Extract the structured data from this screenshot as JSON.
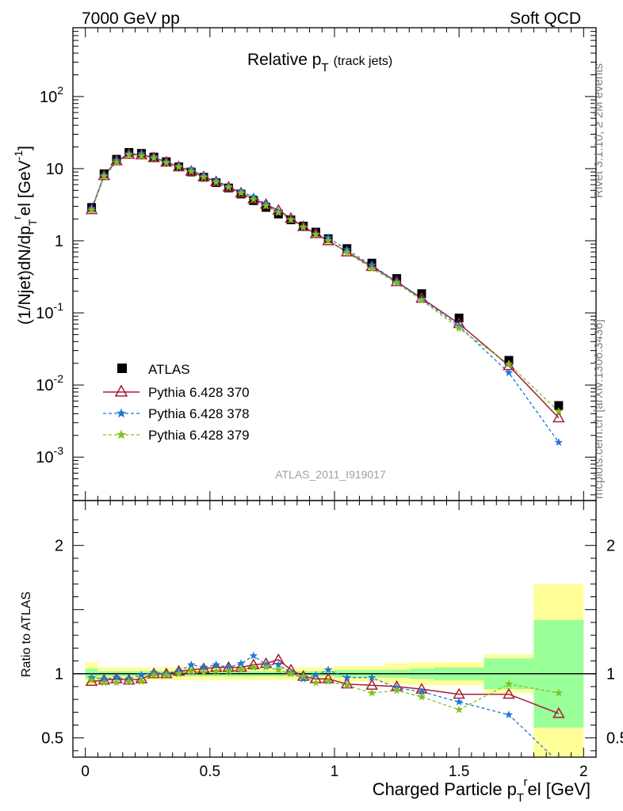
{
  "header": {
    "left": "7000 GeV pp",
    "right": "Soft QCD"
  },
  "side_labels": {
    "rivet": "Rivet 3.1.10, ≥ 2M events",
    "mcplots": "mcplots.cern.ch [arXiv:1306.3436]"
  },
  "analysis_tag": "ATLAS_2011_I919017",
  "chart_data": [
    {
      "type": "line",
      "panel": "main",
      "title": "Relative p_T (track jets)",
      "title_main": "Relative p",
      "title_sub": "T",
      "title_suffix": "(track jets)",
      "ylabel": "(1/Njet)dN/dp_T^rel [GeV^-1]",
      "ylabel_parts": {
        "a": "(1/Njet)dN/dp",
        "b": "T",
        "c": "r",
        "d": "el [GeV",
        "e": "-1",
        "f": "]"
      },
      "xlabel": "Charged Particle p_T^rel [GeV]",
      "xlabel_parts": {
        "a": "Charged Particle p",
        "b": "T",
        "c": "r",
        "d": "el [GeV]"
      },
      "xlim": [
        -0.05,
        2.05
      ],
      "ylim": [
        0.00025,
        900
      ],
      "yscale": "log",
      "y_tick_labels": [
        "10^-3",
        "10^-2",
        "10^-1",
        "1",
        "10",
        "10^2"
      ],
      "x_tick_labels": [
        "0",
        "0.5",
        "1",
        "1.5",
        "2"
      ],
      "legend_position": "bottom-left",
      "x": [
        0.025,
        0.075,
        0.125,
        0.175,
        0.225,
        0.275,
        0.325,
        0.375,
        0.425,
        0.475,
        0.525,
        0.575,
        0.625,
        0.675,
        0.725,
        0.775,
        0.825,
        0.875,
        0.925,
        0.975,
        1.05,
        1.15,
        1.25,
        1.35,
        1.5,
        1.7,
        1.9
      ],
      "series": [
        {
          "name": "ATLAS",
          "style": "black-square",
          "color": "#000000",
          "values": [
            2.9,
            8.5,
            13.5,
            16.8,
            16.3,
            14.5,
            12.5,
            10.6,
            9.0,
            7.6,
            6.4,
            5.4,
            4.45,
            3.6,
            2.9,
            2.35,
            1.95,
            1.6,
            1.32,
            1.07,
            0.78,
            0.49,
            0.3,
            0.185,
            0.085,
            0.022,
            0.0052
          ]
        },
        {
          "name": "Pythia 6.428 370",
          "style": "solid-open-triangle",
          "color": "#a51e37",
          "values": [
            2.7,
            8.0,
            12.8,
            15.8,
            15.5,
            14.2,
            12.3,
            10.6,
            9.2,
            7.7,
            6.6,
            5.55,
            4.6,
            3.8,
            3.2,
            2.65,
            2.05,
            1.57,
            1.25,
            1.0,
            0.7,
            0.44,
            0.27,
            0.16,
            0.071,
            0.0185,
            0.0035
          ]
        },
        {
          "name": "Pythia 6.428 378",
          "style": "dashed-star",
          "color": "#1c78d6",
          "values": [
            2.8,
            8.1,
            13.0,
            16.0,
            16.1,
            14.6,
            12.4,
            10.8,
            9.7,
            7.9,
            6.85,
            5.65,
            4.8,
            4.1,
            3.25,
            2.55,
            1.97,
            1.52,
            1.24,
            1.1,
            0.75,
            0.46,
            0.27,
            0.155,
            0.066,
            0.0148,
            0.0016
          ]
        },
        {
          "name": "Pythia 6.428 379",
          "style": "dashed-star",
          "color": "#7ec21d",
          "values": [
            2.65,
            7.8,
            12.2,
            15.5,
            15.0,
            14.0,
            12.0,
            10.5,
            9.1,
            7.6,
            6.5,
            5.5,
            4.6,
            3.75,
            3.05,
            2.45,
            1.95,
            1.55,
            1.22,
            1.0,
            0.69,
            0.41,
            0.26,
            0.15,
            0.061,
            0.0195,
            0.0043
          ]
        }
      ]
    },
    {
      "type": "line",
      "panel": "ratio",
      "ylabel": "Ratio to ATLAS",
      "ylim": [
        0.35,
        2.35
      ],
      "y_tick_labels": [
        "0.5",
        "1",
        "2"
      ],
      "reference_line": 1.0,
      "band_edges": [
        0,
        0.05,
        0.1,
        0.15,
        0.2,
        0.25,
        0.3,
        0.35,
        0.4,
        0.45,
        0.5,
        0.55,
        0.6,
        0.65,
        0.7,
        0.75,
        0.8,
        0.85,
        0.9,
        0.95,
        1.0,
        1.1,
        1.2,
        1.3,
        1.4,
        1.6,
        1.8,
        2.0
      ],
      "band_stat_half_width": [
        0.04,
        0.02,
        0.02,
        0.02,
        0.02,
        0.02,
        0.02,
        0.02,
        0.02,
        0.02,
        0.02,
        0.02,
        0.02,
        0.02,
        0.02,
        0.02,
        0.02,
        0.02,
        0.02,
        0.02,
        0.03,
        0.03,
        0.03,
        0.04,
        0.05,
        0.12,
        0.42
      ],
      "band_total_half_width": [
        0.09,
        0.05,
        0.05,
        0.05,
        0.05,
        0.05,
        0.05,
        0.05,
        0.05,
        0.05,
        0.05,
        0.05,
        0.05,
        0.05,
        0.05,
        0.05,
        0.05,
        0.05,
        0.05,
        0.05,
        0.06,
        0.06,
        0.08,
        0.09,
        0.09,
        0.15,
        0.7
      ],
      "colors": {
        "stat_band": "#99ff99",
        "total_band": "#ffff99"
      },
      "series": [
        {
          "name": "Pythia 6.428 370",
          "color": "#a51e37",
          "values": [
            0.94,
            0.95,
            0.96,
            0.95,
            0.96,
            1.0,
            1.0,
            1.02,
            1.03,
            1.04,
            1.05,
            1.05,
            1.05,
            1.07,
            1.08,
            1.11,
            1.03,
            0.98,
            0.96,
            0.96,
            0.92,
            0.91,
            0.9,
            0.88,
            0.84,
            0.84,
            0.69
          ]
        },
        {
          "name": "Pythia 6.428 378",
          "color": "#1c78d6",
          "values": [
            0.97,
            0.96,
            0.97,
            0.96,
            0.99,
            1.01,
            1.0,
            1.02,
            1.07,
            1.05,
            1.07,
            1.05,
            1.08,
            1.14,
            1.07,
            1.07,
            1.01,
            0.96,
            0.99,
            1.03,
            0.97,
            0.97,
            0.89,
            0.86,
            0.78,
            0.68,
            0.31
          ]
        },
        {
          "name": "Pythia 6.428 379",
          "color": "#7ec21d",
          "values": [
            0.95,
            0.93,
            0.93,
            0.94,
            0.94,
            0.99,
            0.99,
            1.0,
            1.02,
            1.01,
            1.02,
            1.02,
            1.03,
            1.05,
            1.05,
            1.03,
            1.0,
            0.98,
            0.93,
            0.94,
            0.91,
            0.85,
            0.87,
            0.82,
            0.72,
            0.92,
            0.85
          ]
        }
      ]
    }
  ]
}
